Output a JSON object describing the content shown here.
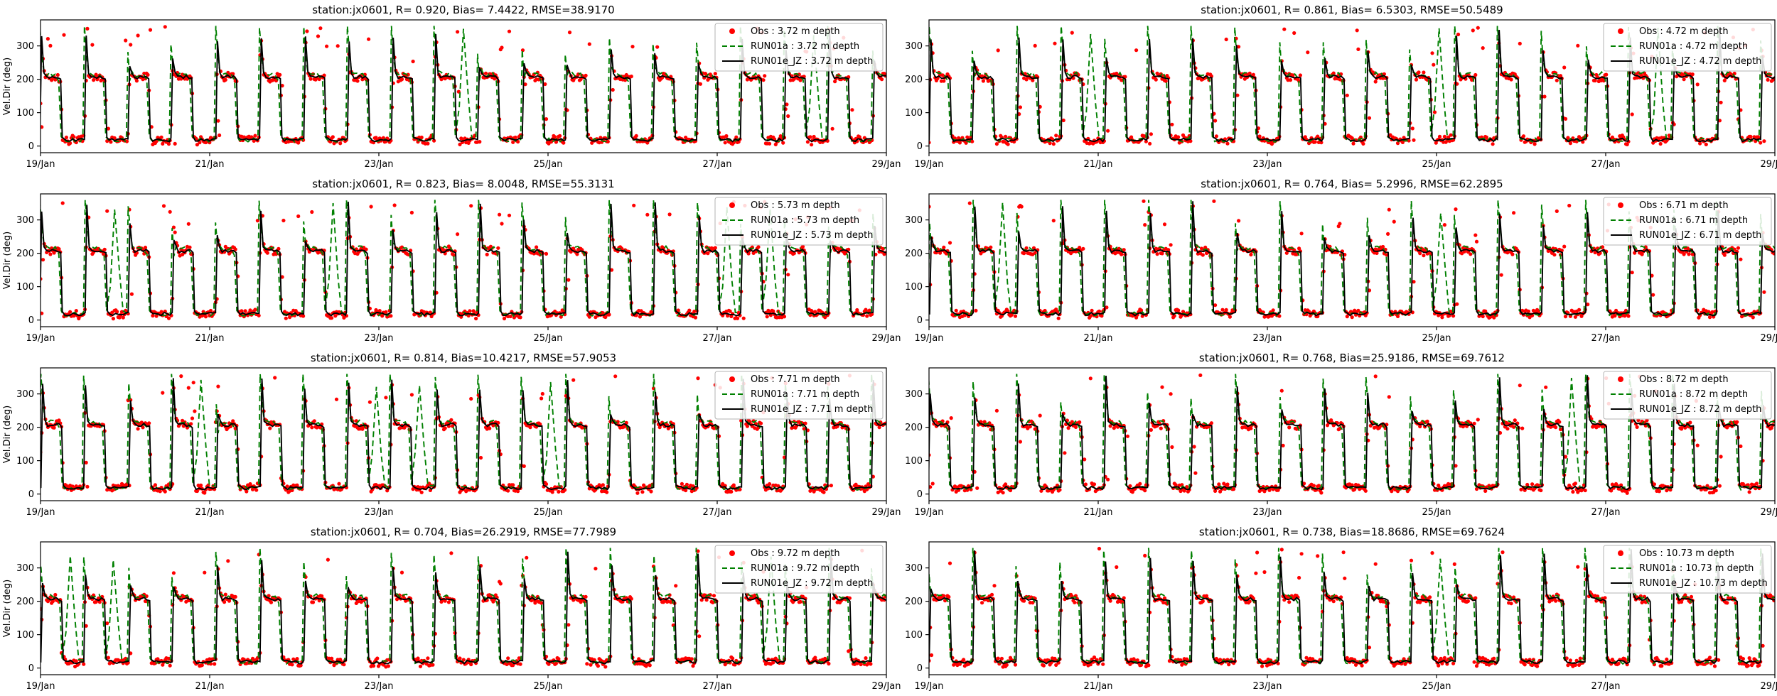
{
  "figure": {
    "ylabel": "Vel.Dir (deg)",
    "background": "#ffffff",
    "station": "jx0601"
  },
  "axis": {
    "ylim": [
      -20,
      378
    ],
    "yticks": [
      0,
      100,
      200,
      300
    ],
    "ytick_labels": [
      "0",
      "100",
      "200",
      "300"
    ],
    "xlim_hours": [
      0,
      240
    ],
    "xtick_hours": [
      0,
      48,
      96,
      144,
      192,
      240
    ],
    "xtick_labels": [
      "19/Jan",
      "21/Jan",
      "23/Jan",
      "25/Jan",
      "27/Jan",
      "29/Jan"
    ],
    "grid": false
  },
  "colors": {
    "obs": "#ff0000",
    "run01a": "#008000",
    "run01e_jz": "#000000",
    "spine": "#000000",
    "legend_border": "#b3b3b3",
    "legend_bg": "#ffffff"
  },
  "pattern": {
    "comment": "Semidiurnal tidal current direction: square-wave alternating between ~207 deg and ~18 deg with sharp spikes to ~350 deg on rising transitions; series synthesized from these parameters per panel seed.",
    "period_h": 12.42,
    "high_deg": 207,
    "low_deg": 18,
    "spike_min": 235,
    "spike_max": 358,
    "green_phase_lead_h": 0.45,
    "green_extra_peak": 28,
    "anomaly_prob": 0.13,
    "obs_step_h": 0.35,
    "obs_noise_deg": 22,
    "outlier_prob": 0.02
  },
  "legend_position": "upper right",
  "chart_data": [
    {
      "type": "line+scatter",
      "title": "station:jx0601, R= 0.920, Bias= 7.4422, RMSE=38.9170",
      "station": "jx0601",
      "R": 0.92,
      "bias": 7.4422,
      "rmse": 38.917,
      "depth_m": 3.72,
      "seed": 11,
      "show_ylabel": true,
      "legend": [
        "Obs : 3.72 m depth",
        "RUN01a : 3.72 m depth",
        "RUN01e_JZ : 3.72 m depth"
      ],
      "series": [
        {
          "name": "Obs",
          "style": "scatter",
          "color": "#ff0000"
        },
        {
          "name": "RUN01a",
          "style": "dashed",
          "color": "#008000"
        },
        {
          "name": "RUN01e_JZ",
          "style": "solid",
          "color": "#000000"
        }
      ]
    },
    {
      "type": "line+scatter",
      "title": "station:jx0601, R= 0.861, Bias= 6.5303, RMSE=50.5489",
      "station": "jx0601",
      "R": 0.861,
      "bias": 6.5303,
      "rmse": 50.5489,
      "depth_m": 4.72,
      "seed": 22,
      "show_ylabel": false,
      "legend": [
        "Obs : 4.72 m depth",
        "RUN01a : 4.72 m depth",
        "RUN01e_JZ : 4.72 m depth"
      ],
      "series": [
        {
          "name": "Obs",
          "style": "scatter",
          "color": "#ff0000"
        },
        {
          "name": "RUN01a",
          "style": "dashed",
          "color": "#008000"
        },
        {
          "name": "RUN01e_JZ",
          "style": "solid",
          "color": "#000000"
        }
      ]
    },
    {
      "type": "line+scatter",
      "title": "station:jx0601, R= 0.823, Bias= 8.0048, RMSE=55.3131",
      "station": "jx0601",
      "R": 0.823,
      "bias": 8.0048,
      "rmse": 55.3131,
      "depth_m": 5.73,
      "seed": 33,
      "show_ylabel": true,
      "legend": [
        "Obs : 5.73 m depth",
        "RUN01a : 5.73 m depth",
        "RUN01e_JZ : 5.73 m depth"
      ],
      "series": [
        {
          "name": "Obs",
          "style": "scatter",
          "color": "#ff0000"
        },
        {
          "name": "RUN01a",
          "style": "dashed",
          "color": "#008000"
        },
        {
          "name": "RUN01e_JZ",
          "style": "solid",
          "color": "#000000"
        }
      ]
    },
    {
      "type": "line+scatter",
      "title": "station:jx0601, R= 0.764, Bias= 5.2996, RMSE=62.2895",
      "station": "jx0601",
      "R": 0.764,
      "bias": 5.2996,
      "rmse": 62.2895,
      "depth_m": 6.71,
      "seed": 44,
      "show_ylabel": false,
      "legend": [
        "Obs : 6.71 m depth",
        "RUN01a : 6.71 m depth",
        "RUN01e_JZ : 6.71 m depth"
      ],
      "series": [
        {
          "name": "Obs",
          "style": "scatter",
          "color": "#ff0000"
        },
        {
          "name": "RUN01a",
          "style": "dashed",
          "color": "#008000"
        },
        {
          "name": "RUN01e_JZ",
          "style": "solid",
          "color": "#000000"
        }
      ]
    },
    {
      "type": "line+scatter",
      "title": "station:jx0601, R= 0.814, Bias=10.4217, RMSE=57.9053",
      "station": "jx0601",
      "R": 0.814,
      "bias": 10.4217,
      "rmse": 57.9053,
      "depth_m": 7.71,
      "seed": 55,
      "show_ylabel": true,
      "legend": [
        "Obs : 7.71 m depth",
        "RUN01a : 7.71 m depth",
        "RUN01e_JZ : 7.71 m depth"
      ],
      "series": [
        {
          "name": "Obs",
          "style": "scatter",
          "color": "#ff0000"
        },
        {
          "name": "RUN01a",
          "style": "dashed",
          "color": "#008000"
        },
        {
          "name": "RUN01e_JZ",
          "style": "solid",
          "color": "#000000"
        }
      ]
    },
    {
      "type": "line+scatter",
      "title": "station:jx0601, R= 0.768, Bias=25.9186, RMSE=69.7612",
      "station": "jx0601",
      "R": 0.768,
      "bias": 25.9186,
      "rmse": 69.7612,
      "depth_m": 8.72,
      "seed": 66,
      "show_ylabel": false,
      "legend": [
        "Obs : 8.72 m depth",
        "RUN01a : 8.72 m depth",
        "RUN01e_JZ : 8.72 m depth"
      ],
      "series": [
        {
          "name": "Obs",
          "style": "scatter",
          "color": "#ff0000"
        },
        {
          "name": "RUN01a",
          "style": "dashed",
          "color": "#008000"
        },
        {
          "name": "RUN01e_JZ",
          "style": "solid",
          "color": "#000000"
        }
      ]
    },
    {
      "type": "line+scatter",
      "title": "station:jx0601, R= 0.704, Bias=26.2919, RMSE=77.7989",
      "station": "jx0601",
      "R": 0.704,
      "bias": 26.2919,
      "rmse": 77.7989,
      "depth_m": 9.72,
      "seed": 77,
      "show_ylabel": true,
      "legend": [
        "Obs : 9.72 m depth",
        "RUN01a : 9.72 m depth",
        "RUN01e_JZ : 9.72 m depth"
      ],
      "series": [
        {
          "name": "Obs",
          "style": "scatter",
          "color": "#ff0000"
        },
        {
          "name": "RUN01a",
          "style": "dashed",
          "color": "#008000"
        },
        {
          "name": "RUN01e_JZ",
          "style": "solid",
          "color": "#000000"
        }
      ]
    },
    {
      "type": "line+scatter",
      "title": "station:jx0601, R= 0.738, Bias=18.8686, RMSE=69.7624",
      "station": "jx0601",
      "R": 0.738,
      "bias": 18.8686,
      "rmse": 69.7624,
      "depth_m": 10.73,
      "seed": 88,
      "show_ylabel": false,
      "legend": [
        "Obs : 10.73 m depth",
        "RUN01a : 10.73 m depth",
        "RUN01e_JZ : 10.73 m depth"
      ],
      "series": [
        {
          "name": "Obs",
          "style": "scatter",
          "color": "#ff0000"
        },
        {
          "name": "RUN01a",
          "style": "dashed",
          "color": "#008000"
        },
        {
          "name": "RUN01e_JZ",
          "style": "solid",
          "color": "#000000"
        }
      ]
    }
  ]
}
